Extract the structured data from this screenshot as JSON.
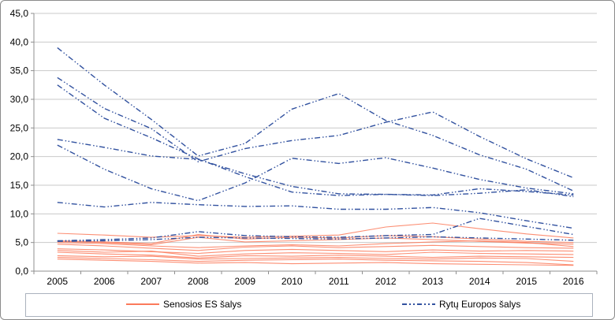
{
  "chart_data": {
    "type": "line",
    "title": "",
    "xlabel": "",
    "ylabel": "",
    "categories": [
      "2005",
      "2006",
      "2007",
      "2008",
      "2009",
      "2010",
      "2011",
      "2012",
      "2013",
      "2014",
      "2015",
      "2016"
    ],
    "ylim": [
      0,
      45
    ],
    "ytick_step": 5,
    "ytick_labels": [
      "0,0",
      "5,0",
      "10,0",
      "15,0",
      "20,0",
      "25,0",
      "30,0",
      "35,0",
      "40,0",
      "45,0"
    ],
    "grid": true,
    "legend_position": "bottom",
    "groups": [
      {
        "name": "Senosios ES šalys",
        "color": "#fb7a5b",
        "style": "solid",
        "series": [
          [
            6.6,
            6.3,
            5.9,
            6.2,
            5.9,
            6.1,
            6.3,
            7.7,
            8.4,
            7.4,
            6.5,
            5.8
          ],
          [
            5.3,
            5.1,
            4.8,
            6.4,
            5.6,
            5.9,
            5.8,
            6.2,
            6.0,
            5.6,
            5.2,
            5.0
          ],
          [
            5.2,
            5.0,
            4.6,
            5.9,
            5.1,
            5.3,
            5.5,
            5.8,
            5.5,
            5.2,
            4.9,
            4.7
          ],
          [
            5.0,
            4.8,
            4.4,
            4.1,
            4.4,
            4.6,
            4.4,
            4.8,
            5.1,
            5.3,
            5.0,
            4.3
          ],
          [
            4.7,
            4.4,
            4.0,
            3.6,
            4.2,
            4.4,
            4.1,
            4.3,
            4.5,
            4.3,
            4.1,
            4.0
          ],
          [
            3.9,
            3.7,
            3.4,
            3.1,
            3.6,
            3.8,
            3.6,
            3.4,
            3.7,
            3.5,
            3.6,
            3.5
          ],
          [
            3.6,
            3.3,
            3.5,
            2.6,
            3.0,
            3.2,
            3.1,
            2.9,
            3.3,
            3.1,
            3.0,
            2.9
          ],
          [
            3.3,
            3.0,
            2.8,
            2.3,
            2.7,
            2.6,
            2.8,
            2.6,
            2.4,
            2.6,
            2.5,
            2.4
          ],
          [
            2.7,
            2.5,
            2.6,
            2.1,
            2.2,
            2.3,
            2.4,
            2.2,
            2.1,
            2.3,
            2.2,
            1.7
          ],
          [
            2.4,
            2.2,
            2.0,
            1.7,
            1.9,
            2.0,
            2.1,
            1.9,
            1.8,
            1.7,
            1.5,
            1.1
          ],
          [
            2.1,
            1.9,
            1.7,
            1.4,
            1.5,
            1.3,
            1.4,
            1.5,
            1.3,
            1.2,
            1.1,
            1.0
          ]
        ]
      },
      {
        "name": "Rytų Europos šalys",
        "color": "#31519f",
        "style": "dash-dot-dot",
        "series": [
          [
            39.0,
            32.5,
            26.5,
            20.1,
            22.3,
            28.3,
            31.0,
            26.3,
            23.7,
            20.3,
            17.8,
            14.0
          ],
          [
            33.8,
            28.4,
            24.9,
            19.1,
            21.4,
            22.8,
            23.7,
            26.0,
            27.8,
            23.5,
            19.6,
            16.3
          ],
          [
            32.5,
            26.7,
            23.3,
            19.6,
            16.5,
            13.8,
            13.2,
            13.4,
            13.3,
            14.4,
            13.9,
            13.3
          ],
          [
            23.0,
            21.6,
            20.1,
            19.5,
            17.0,
            14.8,
            13.5,
            13.4,
            13.2,
            13.6,
            14.2,
            13.0
          ],
          [
            22.0,
            17.8,
            14.4,
            12.3,
            15.4,
            19.7,
            18.8,
            19.8,
            18.0,
            16.0,
            14.5,
            13.5
          ],
          [
            12.0,
            11.2,
            12.0,
            11.6,
            11.3,
            11.4,
            10.8,
            10.8,
            11.1,
            10.2,
            8.8,
            7.5
          ],
          [
            5.3,
            5.5,
            5.8,
            6.9,
            6.2,
            6.0,
            5.9,
            6.2,
            6.4,
            9.2,
            7.8,
            6.4
          ],
          [
            5.2,
            5.3,
            5.5,
            5.9,
            5.8,
            5.7,
            5.6,
            5.8,
            6.0,
            5.8,
            5.6,
            5.4
          ]
        ]
      }
    ],
    "colors": {
      "gridline": "#c9c9c9",
      "axis": "#8f8f8f",
      "tick_label": "#000000"
    }
  },
  "legend": {
    "old_eu_label": "Senosios ES šalys",
    "east_eu_label": "Rytų Europos šalys"
  }
}
